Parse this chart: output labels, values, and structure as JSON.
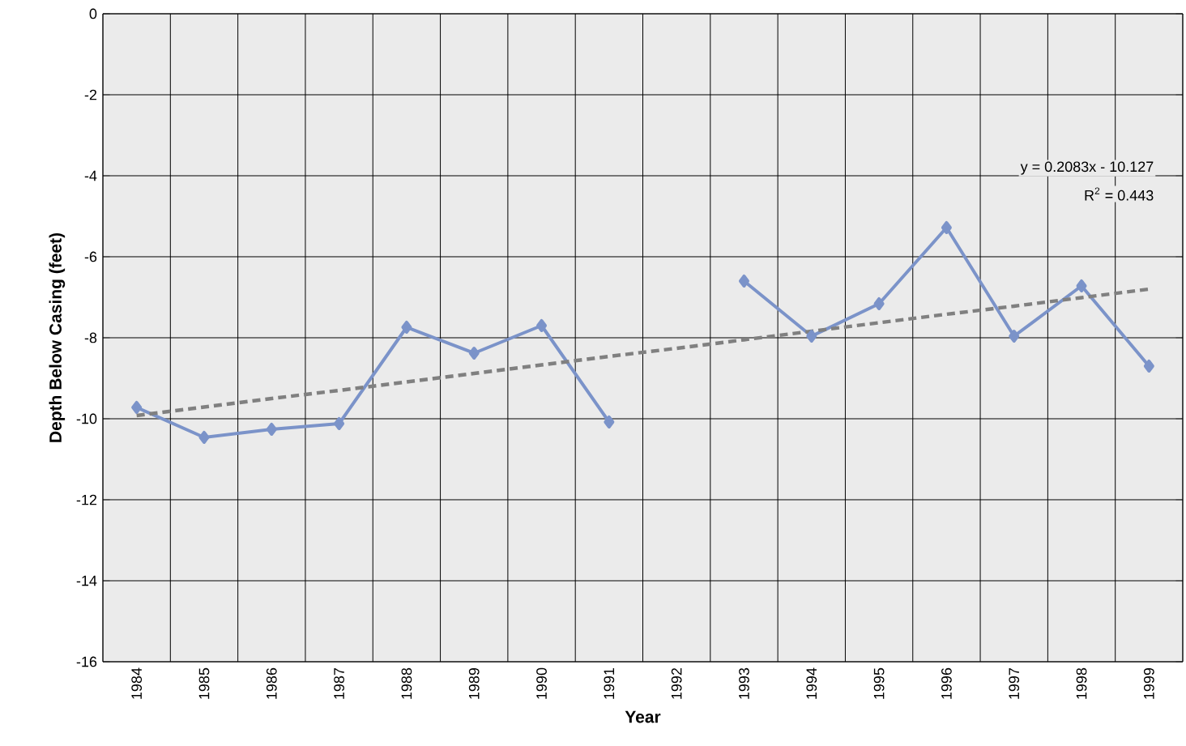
{
  "chart_data": {
    "type": "line",
    "xlabel": "Year",
    "ylabel": "Depth Below Casing  (feet)",
    "categories": [
      "1984",
      "1985",
      "1986",
      "1987",
      "1988",
      "1989",
      "1990",
      "1991",
      "1992",
      "1993",
      "1994",
      "1995",
      "1996",
      "1997",
      "1998",
      "1999"
    ],
    "series": [
      {
        "color": "#7b93c9",
        "marker": "diamond",
        "line_style": "solid",
        "values": [
          -9.72,
          -10.46,
          -10.26,
          -10.12,
          -7.74,
          -8.38,
          -7.7,
          -10.08,
          null,
          -6.6,
          -7.96,
          -7.16,
          -5.28,
          -7.96,
          -6.72,
          -8.7
        ]
      },
      {
        "color": "#808080",
        "marker": "none",
        "line_style": "dashed",
        "values": [
          -9.92,
          -9.71,
          -9.5,
          -9.3,
          -9.09,
          -8.88,
          -8.67,
          -8.46,
          -8.26,
          -8.05,
          -7.84,
          -7.63,
          -7.42,
          -7.22,
          -7.01,
          -6.8
        ]
      }
    ],
    "ylim": [
      -16,
      0
    ],
    "yticks": [
      -16,
      -14,
      -12,
      -10,
      -8,
      -6,
      -4,
      -2,
      0
    ],
    "grid": true,
    "annotations": [
      "y = 0.2083x - 10.127",
      "R$^{2}$ = 0.443"
    ]
  }
}
